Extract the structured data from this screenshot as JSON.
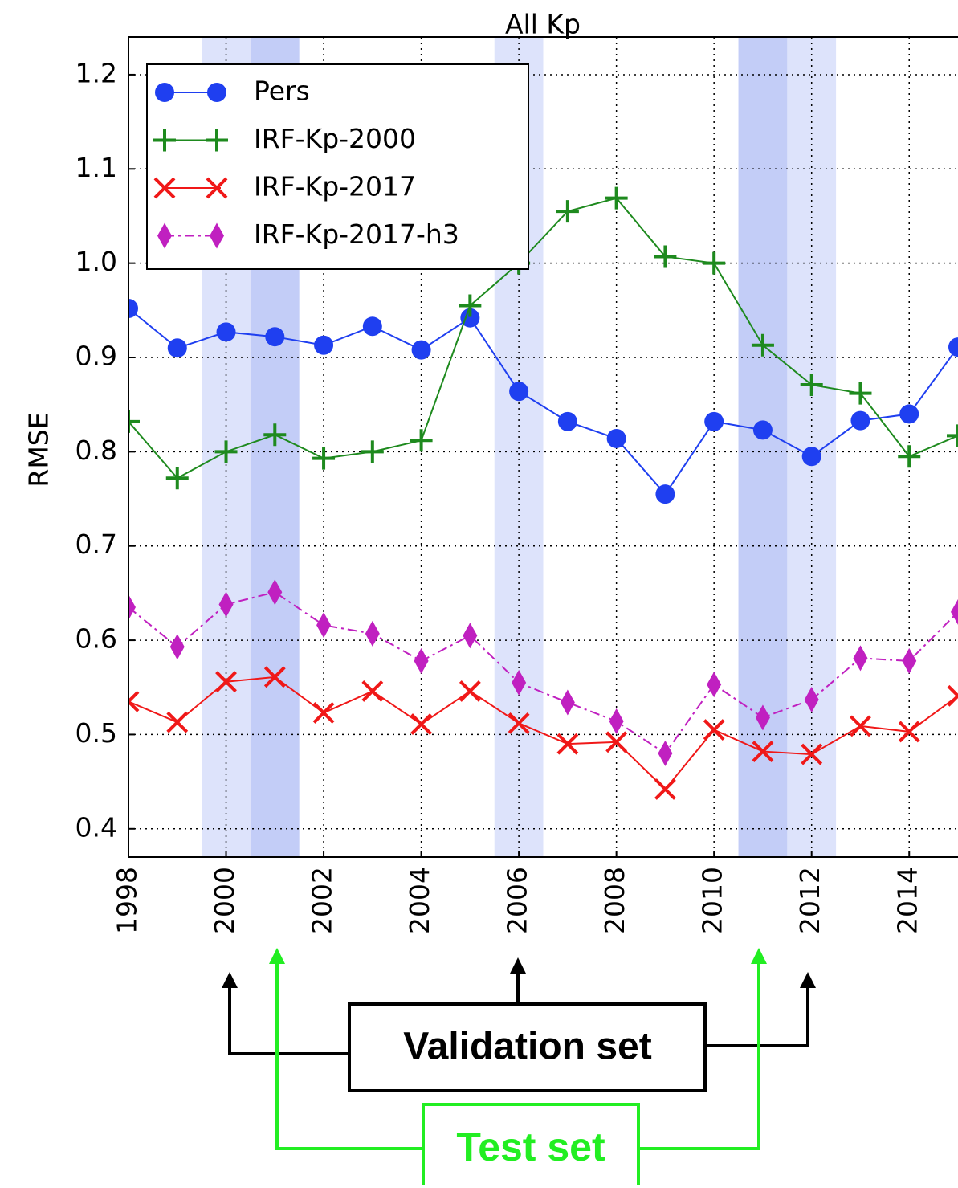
{
  "chart_data": {
    "type": "line",
    "title": "All Kp",
    "y_label": "RMSE",
    "x": [
      1998,
      1999,
      2000,
      2001,
      2002,
      2003,
      2004,
      2005,
      2006,
      2007,
      2008,
      2009,
      2010,
      2011,
      2012,
      2013,
      2014,
      2015
    ],
    "xlim": [
      1998,
      2015
    ],
    "xticks": [
      1998,
      2000,
      2002,
      2004,
      2006,
      2008,
      2010,
      2012,
      2014
    ],
    "ylim": [
      0.37,
      1.24
    ],
    "yticks": [
      0.4,
      0.5,
      0.6,
      0.7,
      0.8,
      0.9,
      {
        "value": 1,
        "label": "1.0"
      },
      1.1,
      1.2
    ],
    "grid": true,
    "legend": "upper left",
    "validation_years": [
      2000,
      2006,
      2012
    ],
    "validation_color": "#dde3fb",
    "test_years": [
      2001,
      2011
    ],
    "test_color": "#c3cdf7",
    "series": [
      {
        "name": "Pers",
        "color": "#1f3ff0",
        "marker": "circle",
        "values": [
          0.952,
          0.91,
          0.927,
          0.922,
          0.913,
          0.933,
          0.908,
          0.942,
          0.864,
          0.832,
          0.814,
          0.755,
          0.832,
          0.823,
          0.795,
          0.833,
          0.84,
          0.911
        ]
      },
      {
        "name": "IRF-Kp-2000",
        "color": "#1e8a1e",
        "marker": "plus",
        "values": [
          0.832,
          0.772,
          0.8,
          0.818,
          0.793,
          0.8,
          0.812,
          0.955,
          1.0,
          1.055,
          1.069,
          1.007,
          1.0,
          0.913,
          0.871,
          0.862,
          0.795,
          0.817
        ]
      },
      {
        "name": "IRF-Kp-2017",
        "color": "#f01818",
        "marker": "x",
        "values": [
          0.535,
          0.513,
          0.556,
          0.561,
          0.523,
          0.546,
          0.511,
          0.546,
          0.512,
          0.49,
          0.492,
          0.442,
          0.505,
          0.482,
          0.479,
          0.509,
          0.503,
          0.541
        ]
      },
      {
        "name": "IRF-Kp-2017-h3",
        "color": "#c020c0",
        "marker": "diamond",
        "dash": true,
        "values": [
          0.635,
          0.593,
          0.638,
          0.651,
          0.616,
          0.607,
          0.578,
          0.605,
          0.555,
          0.534,
          0.514,
          0.48,
          0.553,
          0.518,
          0.537,
          0.581,
          0.578,
          0.63
        ]
      }
    ],
    "annotations": [
      "Validation set",
      "Test set"
    ]
  }
}
